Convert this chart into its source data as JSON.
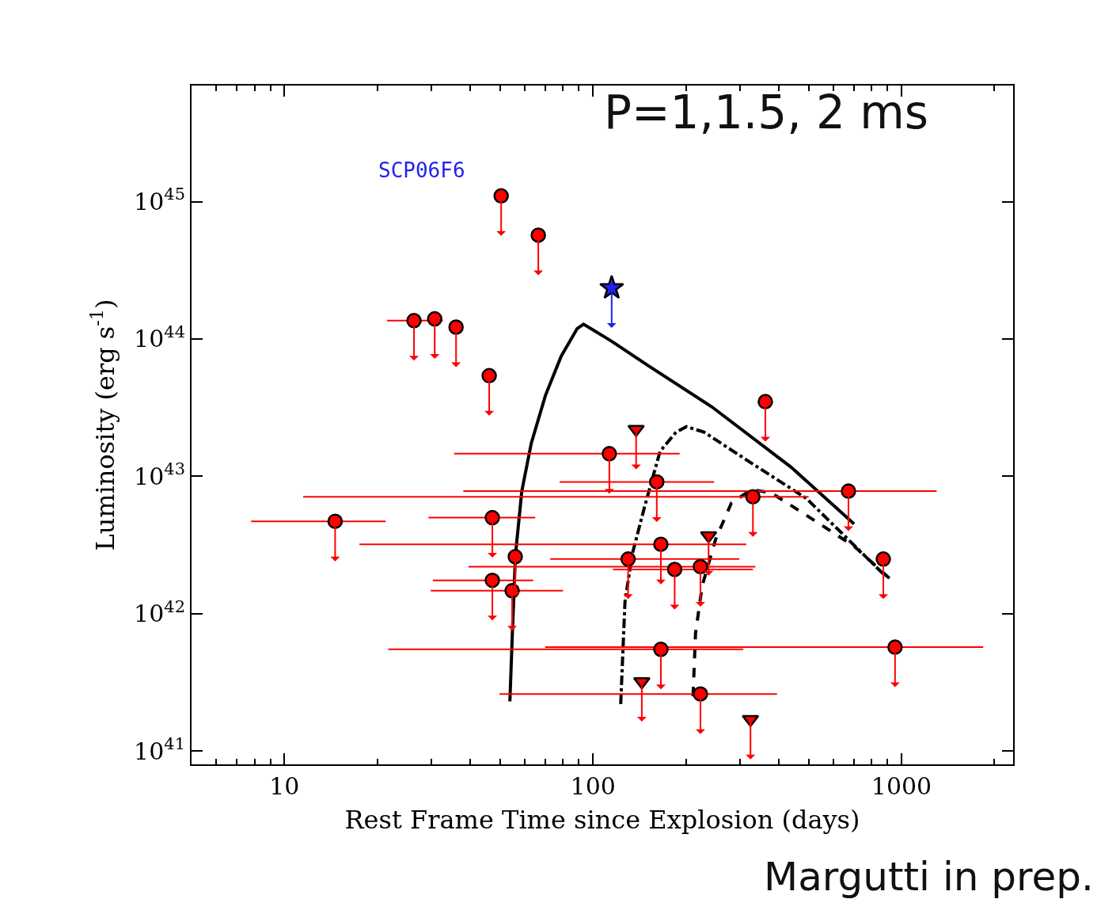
{
  "chart_data": {
    "type": "scatter",
    "xlabel": "Rest Frame Time since Explosion (days)",
    "ylabel": "Luminosity (erg s$^{-1}$)",
    "log": "xy",
    "xlim": [
      5,
      2300
    ],
    "ylim": [
      8e+40,
      7e+45
    ],
    "xticks": [
      10,
      100,
      1000
    ],
    "yticks": [
      {
        "value": 1e+41,
        "label": "10$^{41}$"
      },
      {
        "value": 1e+42,
        "label": "10$^{42}$"
      },
      {
        "value": 1e+43,
        "label": "10$^{43}$"
      },
      {
        "value": 1e+44,
        "label": "10$^{44}$"
      },
      {
        "value": 1e+45,
        "label": "10$^{45}$"
      }
    ],
    "annotations": [
      "P=1,1.5, 2 ms",
      "SCP06F6",
      "Margutti in prep."
    ],
    "series": [
      {
        "marker": "circle",
        "color": "#ff0000",
        "x": [
          50.4,
          66.5,
          26.3,
          30.7,
          36,
          46.1,
          362,
          113,
          161,
          330,
          673,
          14.6,
          47.2,
          166,
          56,
          130,
          184,
          223,
          47.2,
          54.7,
          873,
          166,
          953,
          223
        ],
        "values": [
          1.1e+45,
          5.7e+44,
          1.36e+44,
          1.4e+44,
          1.22e+44,
          5.4e+43,
          3.5e+43,
          1.46e+43,
          9.1e+42,
          7.1e+42,
          7.8e+42,
          4.7e+42,
          5e+42,
          3.2e+42,
          2.6e+42,
          2.5e+42,
          2.1e+42,
          2.2e+42,
          1.75e+42,
          1.47e+42,
          2.5e+42,
          5.5e+41,
          5.7e+41,
          2.6e+41
        ],
        "xerrors": [
          null,
          null,
          [
            21.5,
            32.6
          ],
          null,
          null,
          null,
          null,
          [
            35.5,
            191
          ],
          [
            78,
            247
          ],
          [
            11.5,
            500
          ],
          [
            38,
            1300
          ],
          [
            7.8,
            21.3
          ],
          [
            29.3,
            65
          ],
          [
            17.5,
            314
          ],
          null,
          [
            72.7,
            298
          ],
          [
            116,
            330
          ],
          [
            39.5,
            336
          ],
          [
            30.3,
            64
          ],
          [
            29.8,
            80
          ],
          null,
          [
            21.7,
            307
          ],
          [
            70,
            1840
          ],
          [
            49.8,
            395
          ]
        ]
      },
      {
        "marker": "triangle",
        "color": "#ff0000",
        "x": [
          138,
          237,
          144,
          324
        ],
        "values": [
          2.2e+43,
          3.7e+42,
          3.2e+41,
          1.7e+41
        ]
      },
      {
        "marker": "star",
        "color": "#2222ee",
        "x": [
          115
        ],
        "values": [
          2.35e+44
        ]
      },
      {
        "type": "line",
        "line_style": "solid",
        "color": "#000000",
        "x": [
          53.8,
          54.8,
          56.1,
          58.8,
          63.1,
          70.2,
          78.9,
          88.9,
          93.2,
          101,
          116,
          151,
          243,
          438,
          702
        ],
        "values": [
          2.3e+41,
          7.2e+41,
          2.7e+42,
          7.8e+42,
          1.74e+43,
          3.9e+43,
          7.5e+43,
          1.19e+44,
          1.28e+44,
          1.15e+44,
          9.5e+43,
          6.4e+43,
          3.2e+43,
          1.17e+43,
          4.5e+42
        ]
      },
      {
        "type": "line",
        "line_style": "dashdot",
        "color": "#000000",
        "x": [
          123,
          127,
          134,
          147,
          165,
          186,
          201,
          229,
          326,
          492,
          889
        ],
        "values": [
          2.2e+41,
          1.22e+42,
          2.7e+42,
          6e+42,
          1.52e+43,
          2.1e+43,
          2.3e+43,
          2.1e+43,
          1.25e+43,
          6.9e+42,
          1.87e+42
        ]
      },
      {
        "type": "line",
        "line_style": "dashed",
        "color": "#000000",
        "x": [
          211,
          215,
          226,
          250,
          281,
          326,
          378,
          492,
          702,
          916
        ],
        "values": [
          2.5e+41,
          7.2e+41,
          1.6e+42,
          3.5e+42,
          6.4e+42,
          8e+42,
          7.6e+42,
          5.2e+42,
          3.1e+42,
          1.8e+42
        ]
      }
    ]
  }
}
